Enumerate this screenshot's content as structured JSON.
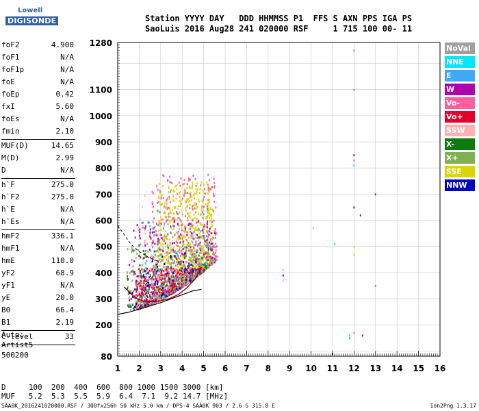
{
  "logo": {
    "line1": "Lowell",
    "line2": "DIGISONDE"
  },
  "header": {
    "row1": "Station YYYY DAY   DDD HHMMSS P1  FFS S AXN PPS IGA PS",
    "row2": "SaoLuis 2016 Aug28 241 020000 RSF     1 715 100 00- 11"
  },
  "params": [
    {
      "k": "foF2",
      "v": "4.900"
    },
    {
      "k": "foF1",
      "v": "N/A"
    },
    {
      "k": "foF1p",
      "v": "N/A"
    },
    {
      "k": "foE",
      "v": "N/A"
    },
    {
      "k": "foEp",
      "v": "0.42"
    },
    {
      "k": "fxI",
      "v": "5.60"
    },
    {
      "k": "foEs",
      "v": "N/A"
    },
    {
      "k": "fmin",
      "v": "2.10"
    },
    {
      "sep": true
    },
    {
      "k": "MUF(D)",
      "v": "14.65"
    },
    {
      "k": "M(D)",
      "v": "2.99"
    },
    {
      "k": "D",
      "v": "N/A"
    },
    {
      "sep": true
    },
    {
      "k": "h`F",
      "v": "275.0"
    },
    {
      "k": "h`F2",
      "v": "275.0"
    },
    {
      "k": "h`E",
      "v": "N/A"
    },
    {
      "k": "h`Es",
      "v": "N/A"
    },
    {
      "sep": true
    },
    {
      "k": "hmF2",
      "v": "336.1"
    },
    {
      "k": "hmF1",
      "v": "N/A"
    },
    {
      "k": "hmE",
      "v": "110.0"
    },
    {
      "k": "yF2",
      "v": "68.9"
    },
    {
      "k": "yF1",
      "v": "N/A"
    },
    {
      "k": "yE",
      "v": "20.0"
    },
    {
      "k": "B0",
      "v": "66.4"
    },
    {
      "k": "B1",
      "v": "2.19"
    },
    {
      "sep": true
    },
    {
      "k": "C-level",
      "v": "33"
    },
    {
      "sep": true
    }
  ],
  "auto": {
    "line1": "Auto:",
    "line2": "Artist5",
    "line3": "500200"
  },
  "dmuf": {
    "d_row": "D     100  200  400  600  800 1000 1500 3000 [km]",
    "muf_row": "MUF   5.2  5.3  5.5  5.9  6.4  7.1  9.2 14.7 [MHz]"
  },
  "footer": {
    "text": "SAA0K_2016241020000.RSF / 300fx256h 50 kHz 5.0 km / DPS-4 SAA0K 903 / 2.6 S 315.8 E",
    "version": "Ion2Png 1.3.17"
  },
  "legend": [
    {
      "label": "NoVal",
      "color": "#a0a0a0"
    },
    {
      "label": "NNE",
      "color": "#00e6ff"
    },
    {
      "label": "E",
      "color": "#3fa9f5"
    },
    {
      "label": "W",
      "color": "#b000b0"
    },
    {
      "label": "Vo-",
      "color": "#ff5fa0"
    },
    {
      "label": "Vo+",
      "color": "#e0002a"
    },
    {
      "label": "SSW",
      "color": "#ffb0b0"
    },
    {
      "label": "X-",
      "color": "#107a10"
    },
    {
      "label": "X+",
      "color": "#80b050"
    },
    {
      "label": "SSE",
      "color": "#d8d800"
    },
    {
      "label": "NNW",
      "color": "#0000c0"
    }
  ],
  "chart_data": {
    "type": "scatter",
    "title": "",
    "xlabel": "",
    "ylabel": "",
    "xlim": [
      1,
      16
    ],
    "ylim": [
      80,
      1280
    ],
    "xticks": [
      1,
      2,
      3,
      4,
      5,
      6,
      7,
      8,
      9,
      10,
      11,
      12,
      13,
      14,
      15,
      16
    ],
    "yticks": [
      80,
      200,
      300,
      400,
      500,
      600,
      700,
      800,
      900,
      1000,
      1100,
      1280
    ],
    "grid": true,
    "profile_curve": {
      "x": [
        1.0,
        1.5,
        2.0,
        2.5,
        3.0,
        3.5,
        4.0,
        4.5,
        4.9
      ],
      "y": [
        240,
        248,
        260,
        272,
        285,
        300,
        315,
        330,
        336
      ]
    },
    "trace_fit": {
      "x": [
        1.3,
        1.8,
        2.2,
        2.6,
        3.0,
        3.4,
        3.8,
        4.2,
        4.6,
        4.9
      ],
      "y": [
        345,
        305,
        290,
        288,
        292,
        300,
        315,
        340,
        375,
        420
      ]
    },
    "dashed_curve": {
      "x": [
        1.0,
        1.3,
        1.6,
        2.0,
        2.5,
        3.0
      ],
      "y": [
        580,
        545,
        510,
        480,
        455,
        440
      ]
    },
    "point_groups": [
      {
        "color": "#d8d800",
        "x_range": [
          2.8,
          5.4
        ],
        "y_range": [
          300,
          750
        ],
        "count": 700
      },
      {
        "color": "#e0002a",
        "x_range": [
          1.8,
          5.0
        ],
        "y_range": [
          270,
          420
        ],
        "count": 500
      },
      {
        "color": "#ff5fa0",
        "x_range": [
          2.5,
          5.6
        ],
        "y_range": [
          300,
          780
        ],
        "count": 350
      },
      {
        "color": "#b000b0",
        "x_range": [
          1.5,
          5.5
        ],
        "y_range": [
          260,
          600
        ],
        "count": 250
      },
      {
        "color": "#80b050",
        "x_range": [
          1.4,
          5.5
        ],
        "y_range": [
          270,
          550
        ],
        "count": 200
      },
      {
        "color": "#107a10",
        "x_range": [
          1.4,
          5.2
        ],
        "y_range": [
          260,
          500
        ],
        "count": 120
      },
      {
        "color": "#3fa9f5",
        "x_range": [
          2.0,
          5.3
        ],
        "y_range": [
          280,
          650
        ],
        "count": 120
      },
      {
        "color": "#0000c0",
        "x_range": [
          1.5,
          4.5
        ],
        "y_range": [
          270,
          480
        ],
        "count": 60
      },
      {
        "color": "#ffb0b0",
        "x_range": [
          1.8,
          5.0
        ],
        "y_range": [
          270,
          700
        ],
        "count": 90
      },
      {
        "color": "#a0a0a0",
        "x_range": [
          1.5,
          5.0
        ],
        "y_range": [
          260,
          500
        ],
        "count": 60
      }
    ],
    "isolated_points": [
      {
        "x": 12.0,
        "y": 1250,
        "color": "#3fa9f5"
      },
      {
        "x": 12.0,
        "y": 1100,
        "color": "#80b050"
      },
      {
        "x": 12.0,
        "y": 850,
        "color": "#b000b0"
      },
      {
        "x": 12.0,
        "y": 830,
        "color": "#ff5fa0"
      },
      {
        "x": 12.0,
        "y": 810,
        "color": "#00e6ff"
      },
      {
        "x": 12.0,
        "y": 650,
        "color": "#e0002a"
      },
      {
        "x": 12.3,
        "y": 620,
        "color": "#107a10"
      },
      {
        "x": 13.0,
        "y": 700,
        "color": "#107a10"
      },
      {
        "x": 10.1,
        "y": 570,
        "color": "#ffb0b0"
      },
      {
        "x": 11.1,
        "y": 510,
        "color": "#00e6ff"
      },
      {
        "x": 12.0,
        "y": 500,
        "color": "#d8d800"
      },
      {
        "x": 12.0,
        "y": 470,
        "color": "#d8d800"
      },
      {
        "x": 8.7,
        "y": 410,
        "color": "#ffb0b0"
      },
      {
        "x": 8.7,
        "y": 390,
        "color": "#e0002a"
      },
      {
        "x": 8.7,
        "y": 370,
        "color": "#ffb0b0"
      },
      {
        "x": 13.0,
        "y": 350,
        "color": "#80b050"
      },
      {
        "x": 12.0,
        "y": 170,
        "color": "#ff5fa0"
      },
      {
        "x": 11.8,
        "y": 160,
        "color": "#00e6ff"
      },
      {
        "x": 11.8,
        "y": 150,
        "color": "#3fa9f5"
      },
      {
        "x": 12.4,
        "y": 160,
        "color": "#b000b0"
      },
      {
        "x": 11.0,
        "y": 90,
        "color": "#0000c0"
      }
    ]
  }
}
